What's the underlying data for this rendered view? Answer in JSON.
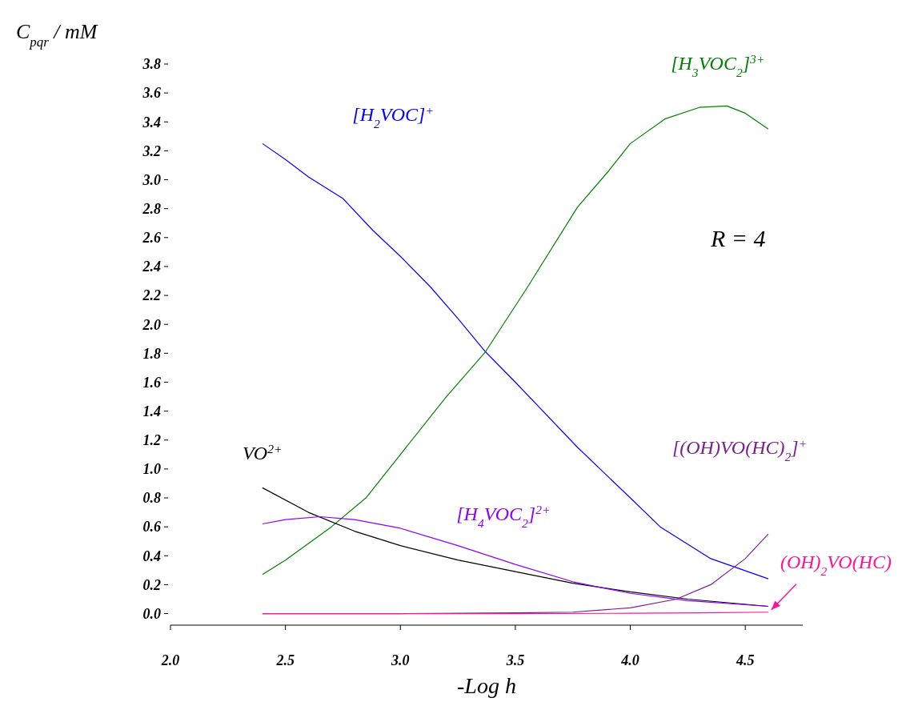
{
  "chart_data": {
    "type": "line",
    "xlabel": "-Log h",
    "ylabel": "C$_{pqr}$ / mM",
    "annotations": [
      "R = 4"
    ],
    "xlim": [
      2.0,
      4.75
    ],
    "ylim": [
      -0.08,
      3.8
    ],
    "xticks": [
      {
        "value": 2.0,
        "label": "2.0"
      },
      {
        "value": 2.5,
        "label": "2.5"
      },
      {
        "value": 3.0,
        "label": "3.0"
      },
      {
        "value": 3.5,
        "label": "3.5"
      },
      {
        "value": 4.0,
        "label": "4.0"
      },
      {
        "value": 4.5,
        "label": "4.5"
      }
    ],
    "yticks": [
      {
        "value": 0,
        "label": "0.0"
      },
      0.2,
      0.4,
      0.6,
      0.8,
      {
        "value": 1,
        "label": "1.0"
      },
      1.2,
      1.4,
      1.6,
      1.8,
      {
        "value": 2,
        "label": "2.0"
      },
      2.2,
      2.4,
      2.6,
      2.8,
      {
        "value": 3,
        "label": "3.0"
      },
      3.2,
      3.4,
      3.6,
      3.8
    ],
    "grid": false,
    "marker": "none",
    "line_style": "solid",
    "series": [
      {
        "name": "[H$_{2}$VOC]$^{+}$",
        "color": "#0000ff",
        "x": [
          2.4,
          2.5,
          2.6,
          2.75,
          2.88,
          3.0,
          3.13,
          3.25,
          3.37,
          3.5,
          3.77,
          4.0,
          4.13,
          4.35,
          4.6
        ],
        "values": [
          3.25,
          3.14,
          3.02,
          2.87,
          2.65,
          2.47,
          2.26,
          2.04,
          1.81,
          1.6,
          1.15,
          0.8,
          0.6,
          0.38,
          0.24
        ]
      },
      {
        "name": "[H$_{3}$VOC$_{2}$]$^{3+}$",
        "color": "#008000",
        "x": [
          2.4,
          2.5,
          2.7,
          2.85,
          3.0,
          3.2,
          3.37,
          3.55,
          3.77,
          3.9,
          4.0,
          4.15,
          4.3,
          4.42,
          4.5,
          4.6
        ],
        "values": [
          0.27,
          0.37,
          0.6,
          0.8,
          1.1,
          1.5,
          1.81,
          2.25,
          2.81,
          3.05,
          3.25,
          3.42,
          3.5,
          3.51,
          3.46,
          3.35
        ]
      },
      {
        "name": "VO$^{2+}$",
        "color": "#000000",
        "x": [
          2.4,
          2.6,
          2.8,
          3.0,
          3.25,
          3.5,
          3.75,
          4.0,
          4.25,
          4.6
        ],
        "values": [
          0.87,
          0.7,
          0.57,
          0.47,
          0.37,
          0.29,
          0.21,
          0.15,
          0.1,
          0.05
        ]
      },
      {
        "name": "[H$_{4}$VOC$_{2}$]$^{2+}$",
        "color": "#8b00ff",
        "x": [
          2.4,
          2.5,
          2.65,
          2.8,
          3.0,
          3.25,
          3.5,
          3.75,
          4.0,
          4.25,
          4.6
        ],
        "values": [
          0.62,
          0.65,
          0.67,
          0.65,
          0.59,
          0.47,
          0.34,
          0.22,
          0.14,
          0.09,
          0.05
        ]
      },
      {
        "name": "[(OH)VO(HC)$_{2}$]$^{+}$",
        "color": "#7b1f8f",
        "x": [
          2.4,
          3.0,
          3.5,
          3.75,
          4.0,
          4.2,
          4.35,
          4.5,
          4.6
        ],
        "values": [
          0,
          0,
          0.005,
          0.01,
          0.04,
          0.1,
          0.2,
          0.38,
          0.55
        ]
      },
      {
        "name": "(OH)$_{2}$VO(HC)",
        "color": "#ff1493",
        "x": [
          2.4,
          3.0,
          3.5,
          4.0,
          4.3,
          4.6
        ],
        "values": [
          0,
          0,
          0,
          0.002,
          0.005,
          0.01
        ]
      }
    ]
  }
}
